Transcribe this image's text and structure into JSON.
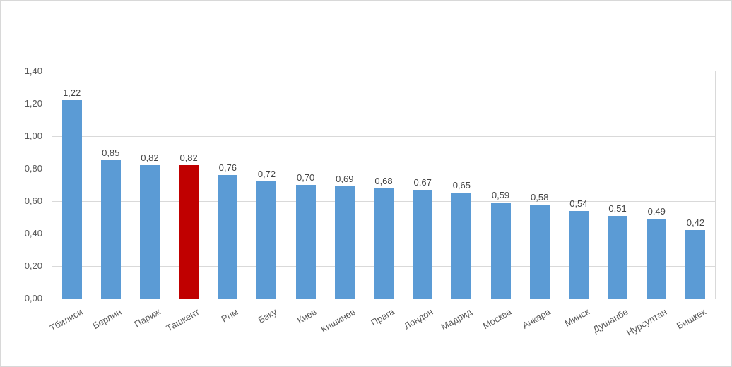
{
  "chart_data": {
    "type": "bar",
    "title": "",
    "xlabel": "",
    "ylabel": "",
    "categories": [
      "Тбилиси",
      "Берлин",
      "Париж",
      "Ташкент",
      "Рим",
      "Баку",
      "Киев",
      "Кишинев",
      "Прага",
      "Лондон",
      "Мадрид",
      "Москва",
      "Анкара",
      "Минск",
      "Душанбе",
      "Нурсултан",
      "Бишкек"
    ],
    "values": [
      1.22,
      0.85,
      0.82,
      0.82,
      0.76,
      0.72,
      0.7,
      0.69,
      0.68,
      0.67,
      0.65,
      0.59,
      0.58,
      0.54,
      0.51,
      0.49,
      0.42
    ],
    "value_labels": [
      "1,22",
      "0,85",
      "0,82",
      "0,82",
      "0,76",
      "0,72",
      "0,70",
      "0,69",
      "0,68",
      "0,67",
      "0,65",
      "0,59",
      "0,58",
      "0,54",
      "0,51",
      "0,49",
      "0,42"
    ],
    "highlighted_category": "Ташкент",
    "highlight_index": 3,
    "ylim": [
      0,
      1.4
    ],
    "ytick_step": 0.2,
    "ytick_labels": [
      "0,00",
      "0,20",
      "0,40",
      "0,60",
      "0,80",
      "1,00",
      "1,20",
      "1,40"
    ],
    "grid": true,
    "legend": false,
    "bar_color": "#5b9bd5",
    "highlight_color": "#c00000",
    "gridline_color": "#d9d9d9",
    "axis_text_color": "#595959"
  }
}
